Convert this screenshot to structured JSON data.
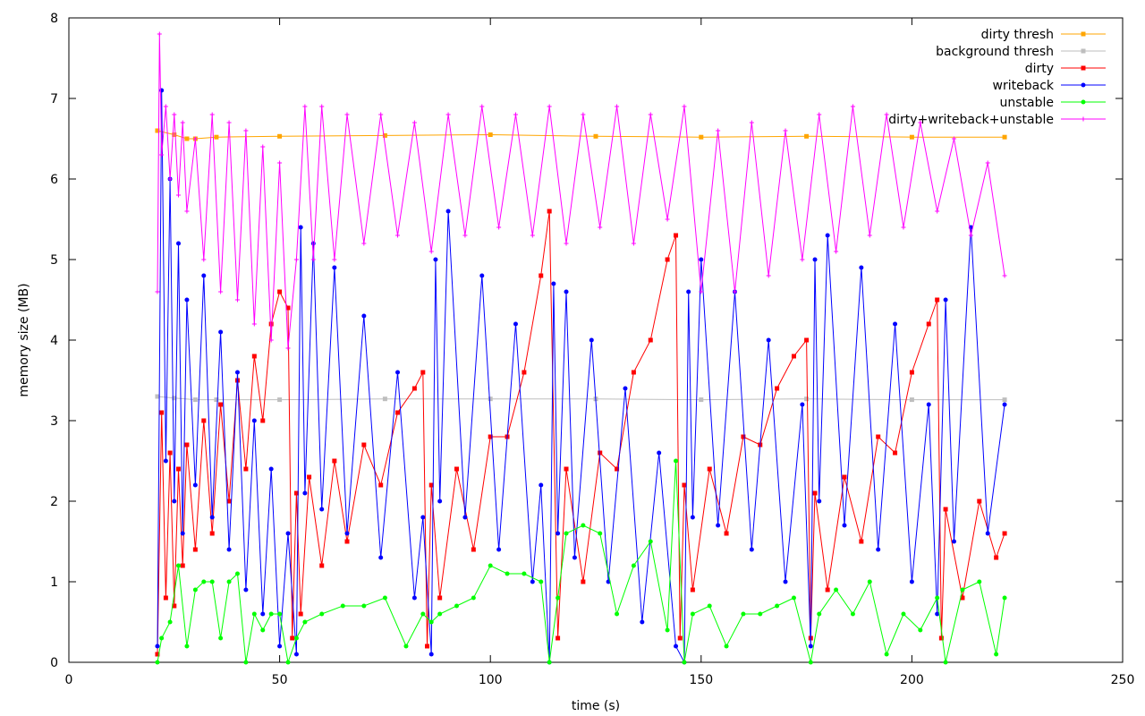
{
  "chart_data": {
    "type": "line",
    "xlabel": "time (s)",
    "ylabel": "memory size (MB)",
    "xlim": [
      0,
      250
    ],
    "ylim": [
      0,
      8
    ],
    "xticks": [
      "0",
      "50",
      "100",
      "150",
      "200",
      "250"
    ],
    "yticks": [
      "0",
      "1",
      "2",
      "3",
      "4",
      "5",
      "6",
      "7",
      "8"
    ],
    "grid": false,
    "legend_position": "top-right",
    "series": [
      {
        "name": "dirty thresh",
        "color": "#ffa500",
        "marker": "square",
        "x": [
          21,
          25,
          28,
          30,
          35,
          50,
          75,
          100,
          125,
          150,
          175,
          200,
          222
        ],
        "y": [
          6.6,
          6.55,
          6.5,
          6.5,
          6.52,
          6.53,
          6.54,
          6.55,
          6.53,
          6.52,
          6.53,
          6.52,
          6.52
        ]
      },
      {
        "name": "background thresh",
        "color": "#bebebe",
        "marker": "square",
        "x": [
          21,
          25,
          30,
          35,
          50,
          75,
          100,
          125,
          150,
          175,
          200,
          222
        ],
        "y": [
          3.3,
          3.28,
          3.26,
          3.26,
          3.26,
          3.27,
          3.27,
          3.27,
          3.26,
          3.27,
          3.26,
          3.26
        ]
      },
      {
        "name": "dirty",
        "color": "#ff0000",
        "marker": "square",
        "x": [
          21,
          22,
          23,
          24,
          25,
          26,
          27,
          28,
          30,
          32,
          34,
          36,
          38,
          40,
          42,
          44,
          46,
          48,
          50,
          52,
          53,
          54,
          55,
          57,
          60,
          63,
          66,
          70,
          74,
          78,
          82,
          84,
          85,
          86,
          88,
          92,
          96,
          100,
          104,
          108,
          112,
          114,
          116,
          118,
          122,
          126,
          130,
          134,
          138,
          142,
          144,
          145,
          146,
          148,
          152,
          156,
          160,
          164,
          168,
          172,
          175,
          176,
          177,
          180,
          184,
          188,
          192,
          196,
          200,
          204,
          206,
          207,
          208,
          212,
          216,
          220,
          222
        ],
        "y": [
          0.1,
          3.1,
          0.8,
          2.6,
          0.7,
          2.4,
          1.2,
          2.7,
          1.4,
          3.0,
          1.6,
          3.2,
          2.0,
          3.5,
          2.4,
          3.8,
          3.0,
          4.2,
          4.6,
          4.4,
          0.3,
          2.1,
          0.6,
          2.3,
          1.2,
          2.5,
          1.5,
          2.7,
          2.2,
          3.1,
          3.4,
          3.6,
          0.2,
          2.2,
          0.8,
          2.4,
          1.4,
          2.8,
          2.8,
          3.6,
          4.8,
          5.6,
          0.3,
          2.4,
          1.0,
          2.6,
          2.4,
          3.6,
          4.0,
          5.0,
          5.3,
          0.3,
          2.2,
          0.9,
          2.4,
          1.6,
          2.8,
          2.7,
          3.4,
          3.8,
          4.0,
          0.3,
          2.1,
          0.9,
          2.3,
          1.5,
          2.8,
          2.6,
          3.6,
          4.2,
          4.5,
          0.3,
          1.9,
          0.8,
          2.0,
          1.3,
          1.6
        ]
      },
      {
        "name": "writeback",
        "color": "#0000ff",
        "marker": "circle",
        "x": [
          21,
          22,
          23,
          24,
          25,
          26,
          27,
          28,
          30,
          32,
          34,
          36,
          38,
          40,
          42,
          44,
          46,
          48,
          50,
          52,
          54,
          55,
          56,
          58,
          60,
          63,
          66,
          70,
          74,
          78,
          82,
          84,
          86,
          87,
          88,
          90,
          94,
          98,
          102,
          106,
          110,
          112,
          114,
          115,
          116,
          118,
          120,
          124,
          128,
          132,
          136,
          140,
          144,
          146,
          147,
          148,
          150,
          154,
          158,
          162,
          166,
          170,
          174,
          176,
          177,
          178,
          180,
          184,
          188,
          192,
          196,
          200,
          204,
          206,
          208,
          210,
          214,
          218,
          222
        ],
        "y": [
          0.2,
          7.1,
          2.5,
          6.0,
          2.0,
          5.2,
          1.6,
          4.5,
          2.2,
          4.8,
          1.8,
          4.1,
          1.4,
          3.6,
          0.9,
          3.0,
          0.6,
          2.4,
          0.2,
          1.6,
          0.1,
          5.4,
          2.1,
          5.2,
          1.9,
          4.9,
          1.6,
          4.3,
          1.3,
          3.6,
          0.8,
          1.8,
          0.1,
          5.0,
          2.0,
          5.6,
          1.8,
          4.8,
          1.4,
          4.2,
          1.0,
          2.2,
          0.0,
          4.7,
          1.6,
          4.6,
          1.3,
          4.0,
          1.0,
          3.4,
          0.5,
          2.6,
          0.2,
          0.0,
          4.6,
          1.8,
          5.0,
          1.7,
          4.6,
          1.4,
          4.0,
          1.0,
          3.2,
          0.2,
          5.0,
          2.0,
          5.3,
          1.7,
          4.9,
          1.4,
          4.2,
          1.0,
          3.2,
          0.6,
          4.5,
          1.5,
          5.4,
          1.6,
          3.2
        ]
      },
      {
        "name": "unstable",
        "color": "#00ff00",
        "marker": "circle",
        "x": [
          21,
          22,
          24,
          26,
          28,
          30,
          32,
          34,
          36,
          38,
          40,
          42,
          44,
          46,
          48,
          50,
          52,
          54,
          56,
          60,
          65,
          70,
          75,
          80,
          84,
          86,
          88,
          92,
          96,
          100,
          104,
          108,
          112,
          114,
          116,
          118,
          122,
          126,
          130,
          134,
          138,
          142,
          144,
          146,
          148,
          152,
          156,
          160,
          164,
          168,
          172,
          176,
          178,
          182,
          186,
          190,
          194,
          198,
          202,
          206,
          208,
          212,
          216,
          220,
          222
        ],
        "y": [
          0.0,
          0.3,
          0.5,
          1.2,
          0.2,
          0.9,
          1.0,
          1.0,
          0.3,
          1.0,
          1.1,
          0.0,
          0.6,
          0.4,
          0.6,
          0.6,
          0.0,
          0.3,
          0.5,
          0.6,
          0.7,
          0.7,
          0.8,
          0.2,
          0.6,
          0.5,
          0.6,
          0.7,
          0.8,
          1.2,
          1.1,
          1.1,
          1.0,
          0.0,
          0.8,
          1.6,
          1.7,
          1.6,
          0.6,
          1.2,
          1.5,
          0.4,
          2.5,
          0.0,
          0.6,
          0.7,
          0.2,
          0.6,
          0.6,
          0.7,
          0.8,
          0.0,
          0.6,
          0.9,
          0.6,
          1.0,
          0.1,
          0.6,
          0.4,
          0.8,
          0.0,
          0.9,
          1.0,
          0.1,
          0.8
        ]
      },
      {
        "name": "dirty+writeback+unstable",
        "color": "#ff00ff",
        "marker": "plus",
        "x": [
          21,
          21.5,
          22,
          23,
          24,
          25,
          26,
          27,
          28,
          30,
          32,
          34,
          36,
          38,
          40,
          42,
          44,
          46,
          48,
          50,
          52,
          54,
          56,
          58,
          60,
          63,
          66,
          70,
          74,
          78,
          82,
          86,
          90,
          94,
          98,
          102,
          106,
          110,
          114,
          118,
          122,
          126,
          130,
          134,
          138,
          142,
          146,
          150,
          154,
          158,
          162,
          166,
          170,
          174,
          178,
          182,
          186,
          190,
          194,
          198,
          202,
          206,
          210,
          214,
          218,
          222
        ],
        "y": [
          4.6,
          7.8,
          6.3,
          6.9,
          6.0,
          6.8,
          5.8,
          6.7,
          5.6,
          6.5,
          5.0,
          6.8,
          4.6,
          6.7,
          4.5,
          6.6,
          4.2,
          6.4,
          4.0,
          6.2,
          3.9,
          5.0,
          6.9,
          5.0,
          6.9,
          5.0,
          6.8,
          5.2,
          6.8,
          5.3,
          6.7,
          5.1,
          6.8,
          5.3,
          6.9,
          5.4,
          6.8,
          5.3,
          6.9,
          5.2,
          6.8,
          5.4,
          6.9,
          5.2,
          6.8,
          5.5,
          6.9,
          4.6,
          6.6,
          4.6,
          6.7,
          4.8,
          6.6,
          5.0,
          6.8,
          5.1,
          6.9,
          5.3,
          6.8,
          5.4,
          6.7,
          5.6,
          6.5,
          5.3,
          6.2,
          4.8
        ]
      }
    ]
  }
}
